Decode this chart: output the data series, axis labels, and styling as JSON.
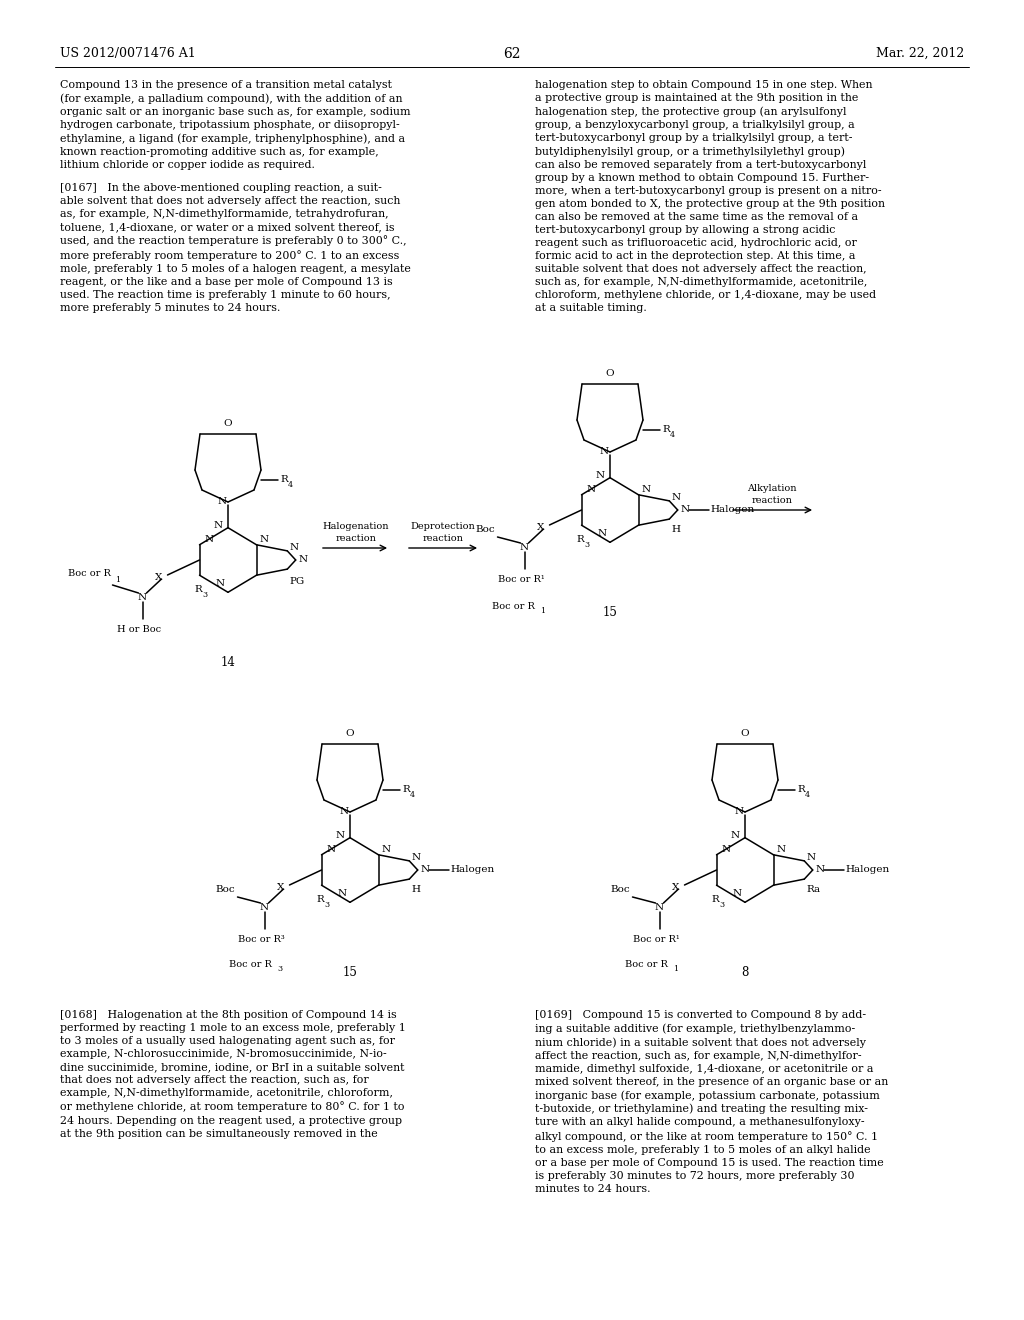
{
  "page_number": "62",
  "patent_number": "US 2012/0071476 A1",
  "patent_date": "Mar. 22, 2012",
  "background_color": "#ffffff",
  "left_top": "Compound 13 in the presence of a transition metal catalyst\n(for example, a palladium compound), with the addition of an\norganic salt or an inorganic base such as, for example, sodium\nhydrogen carbonate, tripotassium phosphate, or diisopropyl-\nethylamine, a ligand (for example, triphenylphosphine), and a\nknown reaction-promoting additive such as, for example,\nlithium chloride or copper iodide as required.",
  "right_top": "halogenation step to obtain Compound 15 in one step. When\na protective group is maintained at the 9th position in the\nhalogenation step, the protective group (an arylsulfonyl\ngroup, a benzyloxycarbonyl group, a trialkylsilyl group, a\ntert-butoxycarbonyl group by a trialkylsilyl group, a tert-\nbutyldiphenylsilyl group, or a trimethylsilylethyl group)\ncan also be removed separately from a tert-butoxycarbonyl\ngroup by a known method to obtain Compound 15. Further-\nmore, when a tert-butoxycarbonyl group is present on a nitro-\ngen atom bonded to X, the protective group at the 9th position\ncan also be removed at the same time as the removal of a\ntert-butoxycarbonyl group by allowing a strong acidic\nreagent such as trifluoroacetic acid, hydrochloric acid, or\nformic acid to act in the deprotection step. At this time, a\nsuitable solvent that does not adversely affect the reaction,\nsuch as, for example, N,N-dimethylformamide, acetonitrile,\nchloroform, methylene chloride, or 1,4-dioxane, may be used\nat a suitable timing.",
  "para167": "[0167]   In the above-mentioned coupling reaction, a suit-\nable solvent that does not adversely affect the reaction, such\nas, for example, N,N-dimethylformamide, tetrahydrofuran,\ntoluene, 1,4-dioxane, or water or a mixed solvent thereof, is\nused, and the reaction temperature is preferably 0 to 300° C.,\nmore preferably room temperature to 200° C. 1 to an excess\nmole, preferably 1 to 5 moles of a halogen reagent, a mesylate\nreagent, or the like and a base per mole of Compound 13 is\nused. The reaction time is preferably 1 minute to 60 hours,\nmore preferably 5 minutes to 24 hours.",
  "para168": "[0168]   Halogenation at the 8th position of Compound 14 is\nperformed by reacting 1 mole to an excess mole, preferably 1\nto 3 moles of a usually used halogenating agent such as, for\nexample, N-chlorosuccinimide, N-bromosuccinimide, N-io-\ndine succinimide, bromine, iodine, or BrI in a suitable solvent\nthat does not adversely affect the reaction, such as, for\nexample, N,N-dimethylformamide, acetonitrile, chloroform,\nor methylene chloride, at room temperature to 80° C. for 1 to\n24 hours. Depending on the reagent used, a protective group\nat the 9th position can be simultaneously removed in the",
  "para169": "[0169]   Compound 15 is converted to Compound 8 by add-\ning a suitable additive (for example, triethylbenzylammo-\nnium chloride) in a suitable solvent that does not adversely\naffect the reaction, such as, for example, N,N-dimethylfor-\nmamide, dimethyl sulfoxide, 1,4-dioxane, or acetonitrile or a\nmixed solvent thereof, in the presence of an organic base or an\ninorganic base (for example, potassium carbonate, potassium\nt-butoxide, or triethylamine) and treating the resulting mix-\nture with an alkyl halide compound, a methanesulfonyloxy-\nalkyl compound, or the like at room temperature to 150° C. 1\nto an excess mole, preferably 1 to 5 moles of an alkyl halide\nor a base per mole of Compound 15 is used. The reaction time\nis preferably 30 minutes to 72 hours, more preferably 30\nminutes to 24 hours."
}
